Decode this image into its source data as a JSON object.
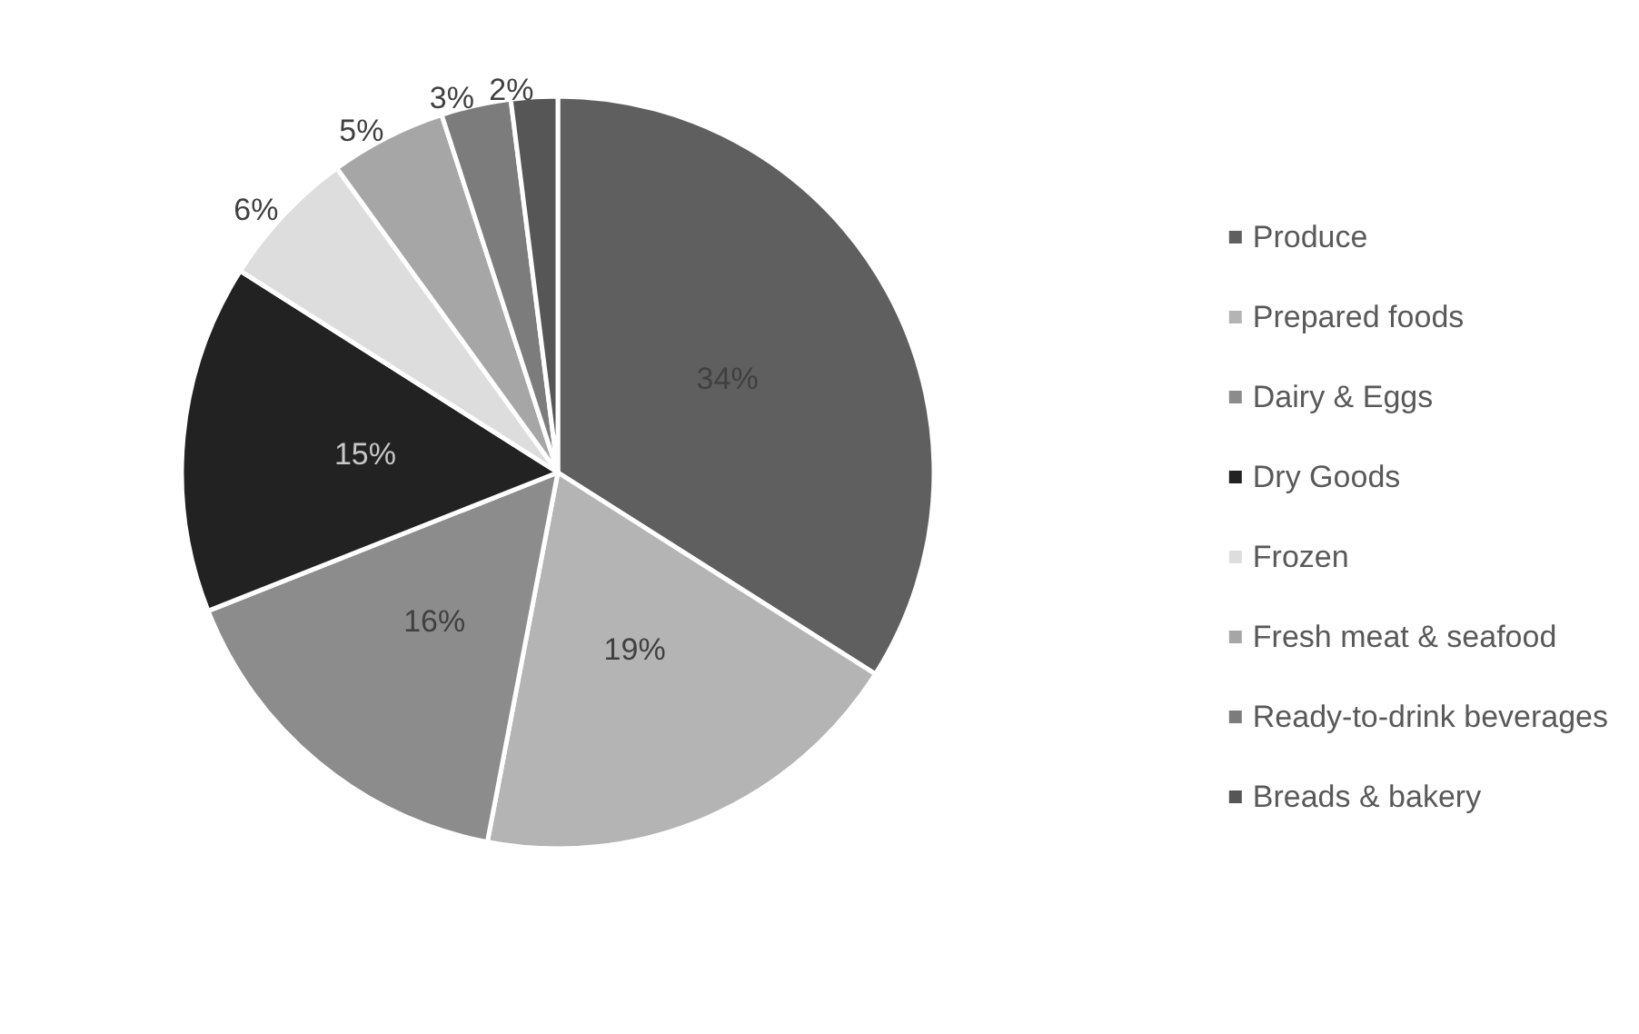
{
  "chart_data": {
    "type": "pie",
    "categories": [
      "Produce",
      "Prepared foods",
      "Dairy & Eggs",
      "Dry Goods",
      "Frozen",
      "Fresh meat & seafood",
      "Ready-to-drink beverages",
      "Breads & bakery"
    ],
    "values": [
      34,
      19,
      16,
      15,
      6,
      5,
      3,
      2
    ],
    "colors": [
      "#5f5f5f",
      "#b4b4b4",
      "#8c8c8c",
      "#222222",
      "#dddddd",
      "#a6a6a6",
      "#7c7c7c",
      "#565656"
    ],
    "value_labels": [
      "34%",
      "19%",
      "16%",
      "15%",
      "6%",
      "5%",
      "3%",
      "2%"
    ],
    "legend": "right"
  }
}
